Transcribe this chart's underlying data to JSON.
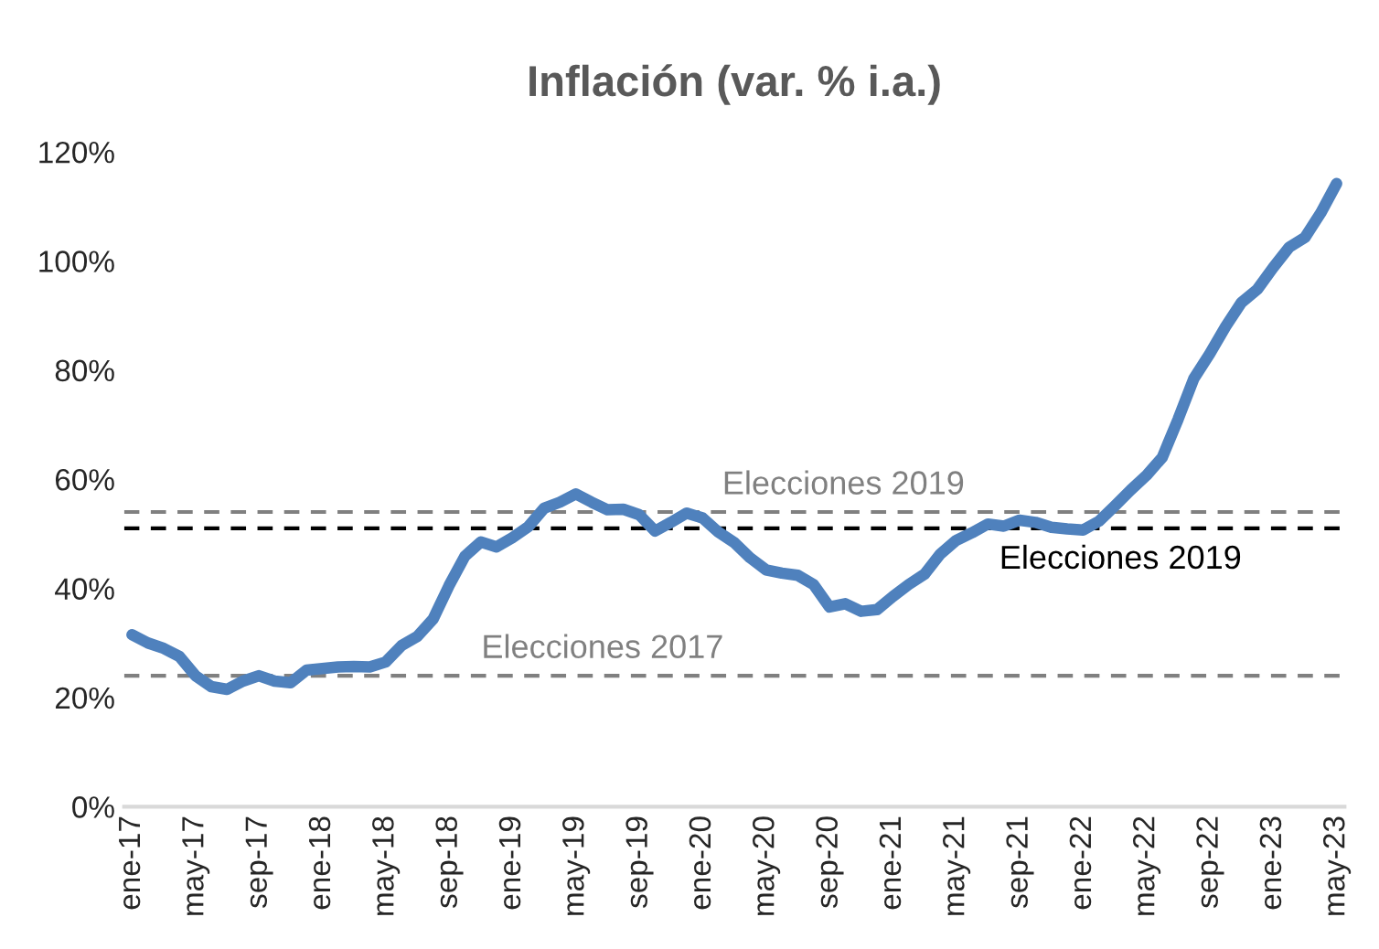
{
  "chart_data": {
    "type": "line",
    "title": "Inflación (var. % i.a.)",
    "categories": [
      "ene-17",
      null,
      null,
      null,
      "may-17",
      null,
      null,
      null,
      "sep-17",
      null,
      null,
      null,
      "ene-18",
      null,
      null,
      null,
      "may-18",
      null,
      null,
      null,
      "sep-18",
      null,
      null,
      null,
      "ene-19",
      null,
      null,
      null,
      "may-19",
      null,
      null,
      null,
      "sep-19",
      null,
      null,
      null,
      "ene-20",
      null,
      null,
      null,
      "may-20",
      null,
      null,
      null,
      "sep-20",
      null,
      null,
      null,
      "ene-21",
      null,
      null,
      null,
      "may-21",
      null,
      null,
      null,
      "sep-21",
      null,
      null,
      null,
      "ene-22",
      null,
      null,
      null,
      "may-22",
      null,
      null,
      null,
      "sep-22",
      null,
      null,
      null,
      "ene-23",
      null,
      null,
      null,
      "may-23"
    ],
    "series": [
      {
        "color": "#4f81bd",
        "values": [
          31.5,
          30,
          29,
          27.5,
          24,
          22,
          21.5,
          23,
          24,
          23,
          22.7,
          25,
          25.3,
          25.6,
          25.7,
          25.6,
          26.5,
          29.5,
          31.2,
          34.4,
          40.5,
          45.9,
          48.5,
          47.6,
          49.3,
          51.3,
          54.7,
          55.8,
          57.3,
          55.8,
          54.4,
          54.5,
          53.5,
          50.5,
          52.1,
          53.8,
          52.9,
          50.3,
          48.4,
          45.6,
          43.4,
          42.8,
          42.4,
          40.7,
          36.6,
          37.2,
          35.8,
          36.1,
          38.5,
          40.7,
          42.6,
          46.3,
          48.8,
          50.2,
          51.8,
          51.4,
          52.5,
          52.1,
          51.2,
          50.9,
          50.7,
          52.3,
          55.1,
          58,
          60.7,
          64,
          71,
          78.5,
          83,
          88,
          92.4,
          94.8,
          98.8,
          102.5,
          104.3,
          108.8,
          114.2
        ]
      }
    ],
    "ylim": [
      0,
      120
    ],
    "yticks": [
      {
        "value": 0,
        "label": "0%"
      },
      {
        "value": 20,
        "label": "20%"
      },
      {
        "value": 40,
        "label": "40%"
      },
      {
        "value": 60,
        "label": "60%"
      },
      {
        "value": 80,
        "label": "80%"
      },
      {
        "value": 100,
        "label": "100%"
      },
      {
        "value": 120,
        "label": "120%"
      }
    ],
    "ref_lines": [
      {
        "axis": "y",
        "value": 24,
        "label": "Elecciones 2017",
        "color": "#808080",
        "line_style": "dashed"
      },
      {
        "axis": "y",
        "value": 54,
        "label": "Elecciones 2019",
        "color": "#808080",
        "line_style": "dashed"
      },
      {
        "axis": "y",
        "value": 51,
        "label": "Elecciones 2019",
        "color": "#000000",
        "line_style": "dashed"
      }
    ],
    "grid": false,
    "legend": false
  }
}
